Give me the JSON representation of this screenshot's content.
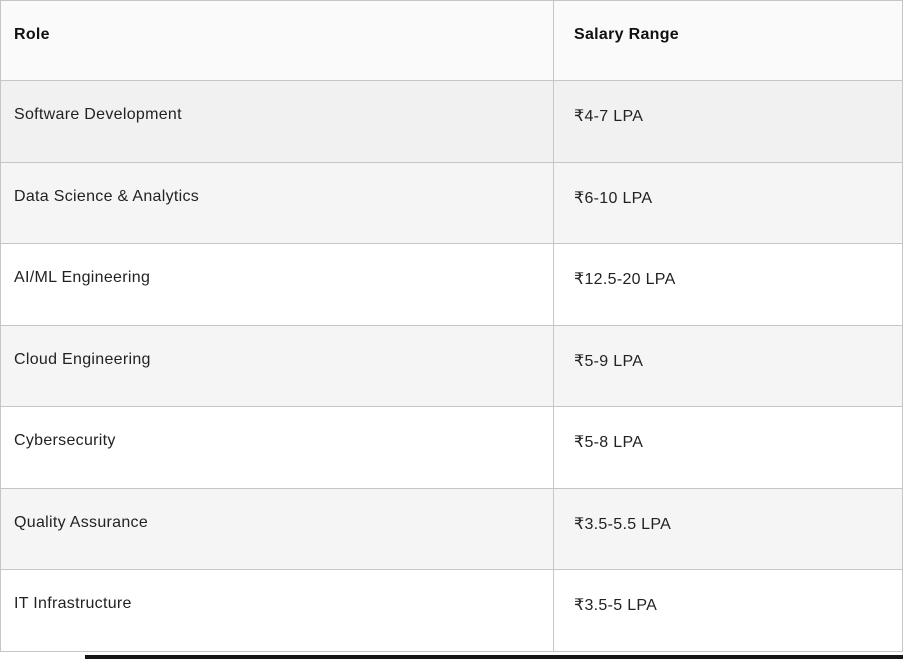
{
  "table": {
    "header": {
      "role": "Role",
      "salary": "Salary Range"
    },
    "rows": [
      {
        "role": "Software Development",
        "salary": "₹4-7 LPA"
      },
      {
        "role": "Data Science & Analytics",
        "salary": "₹6-10 LPA"
      },
      {
        "role": "AI/ML Engineering",
        "salary": "₹12.5-20 LPA"
      },
      {
        "role": "Cloud Engineering",
        "salary": "₹5-9 LPA"
      },
      {
        "role": "Cybersecurity",
        "salary": "₹5-8 LPA"
      },
      {
        "role": "Quality Assurance",
        "salary": "₹3.5-5.5 LPA"
      },
      {
        "role": "IT Infrastructure",
        "salary": "₹3.5-5 LPA"
      }
    ],
    "highlighted_row_index": 0,
    "colors": {
      "header_bg": "#fafafa",
      "row_bg": "#ffffff",
      "row_stripe_bg": "#f5f5f5",
      "row_highlight_bg": "#f1f1f1",
      "border": "#c6c6c6",
      "text": "#222222",
      "bottom_bar": "#161616"
    }
  },
  "chart_data": {
    "type": "table",
    "columns": [
      "Role",
      "Salary Range"
    ],
    "rows": [
      [
        "Software Development",
        "₹4-7 LPA"
      ],
      [
        "Data Science & Analytics",
        "₹6-10 LPA"
      ],
      [
        "AI/ML Engineering",
        "₹12.5-20 LPA"
      ],
      [
        "Cloud Engineering",
        "₹5-9 LPA"
      ],
      [
        "Cybersecurity",
        "₹5-8 LPA"
      ],
      [
        "Quality Assurance",
        "₹3.5-5.5 LPA"
      ],
      [
        "IT Infrastructure",
        "₹3.5-5 LPA"
      ]
    ]
  }
}
